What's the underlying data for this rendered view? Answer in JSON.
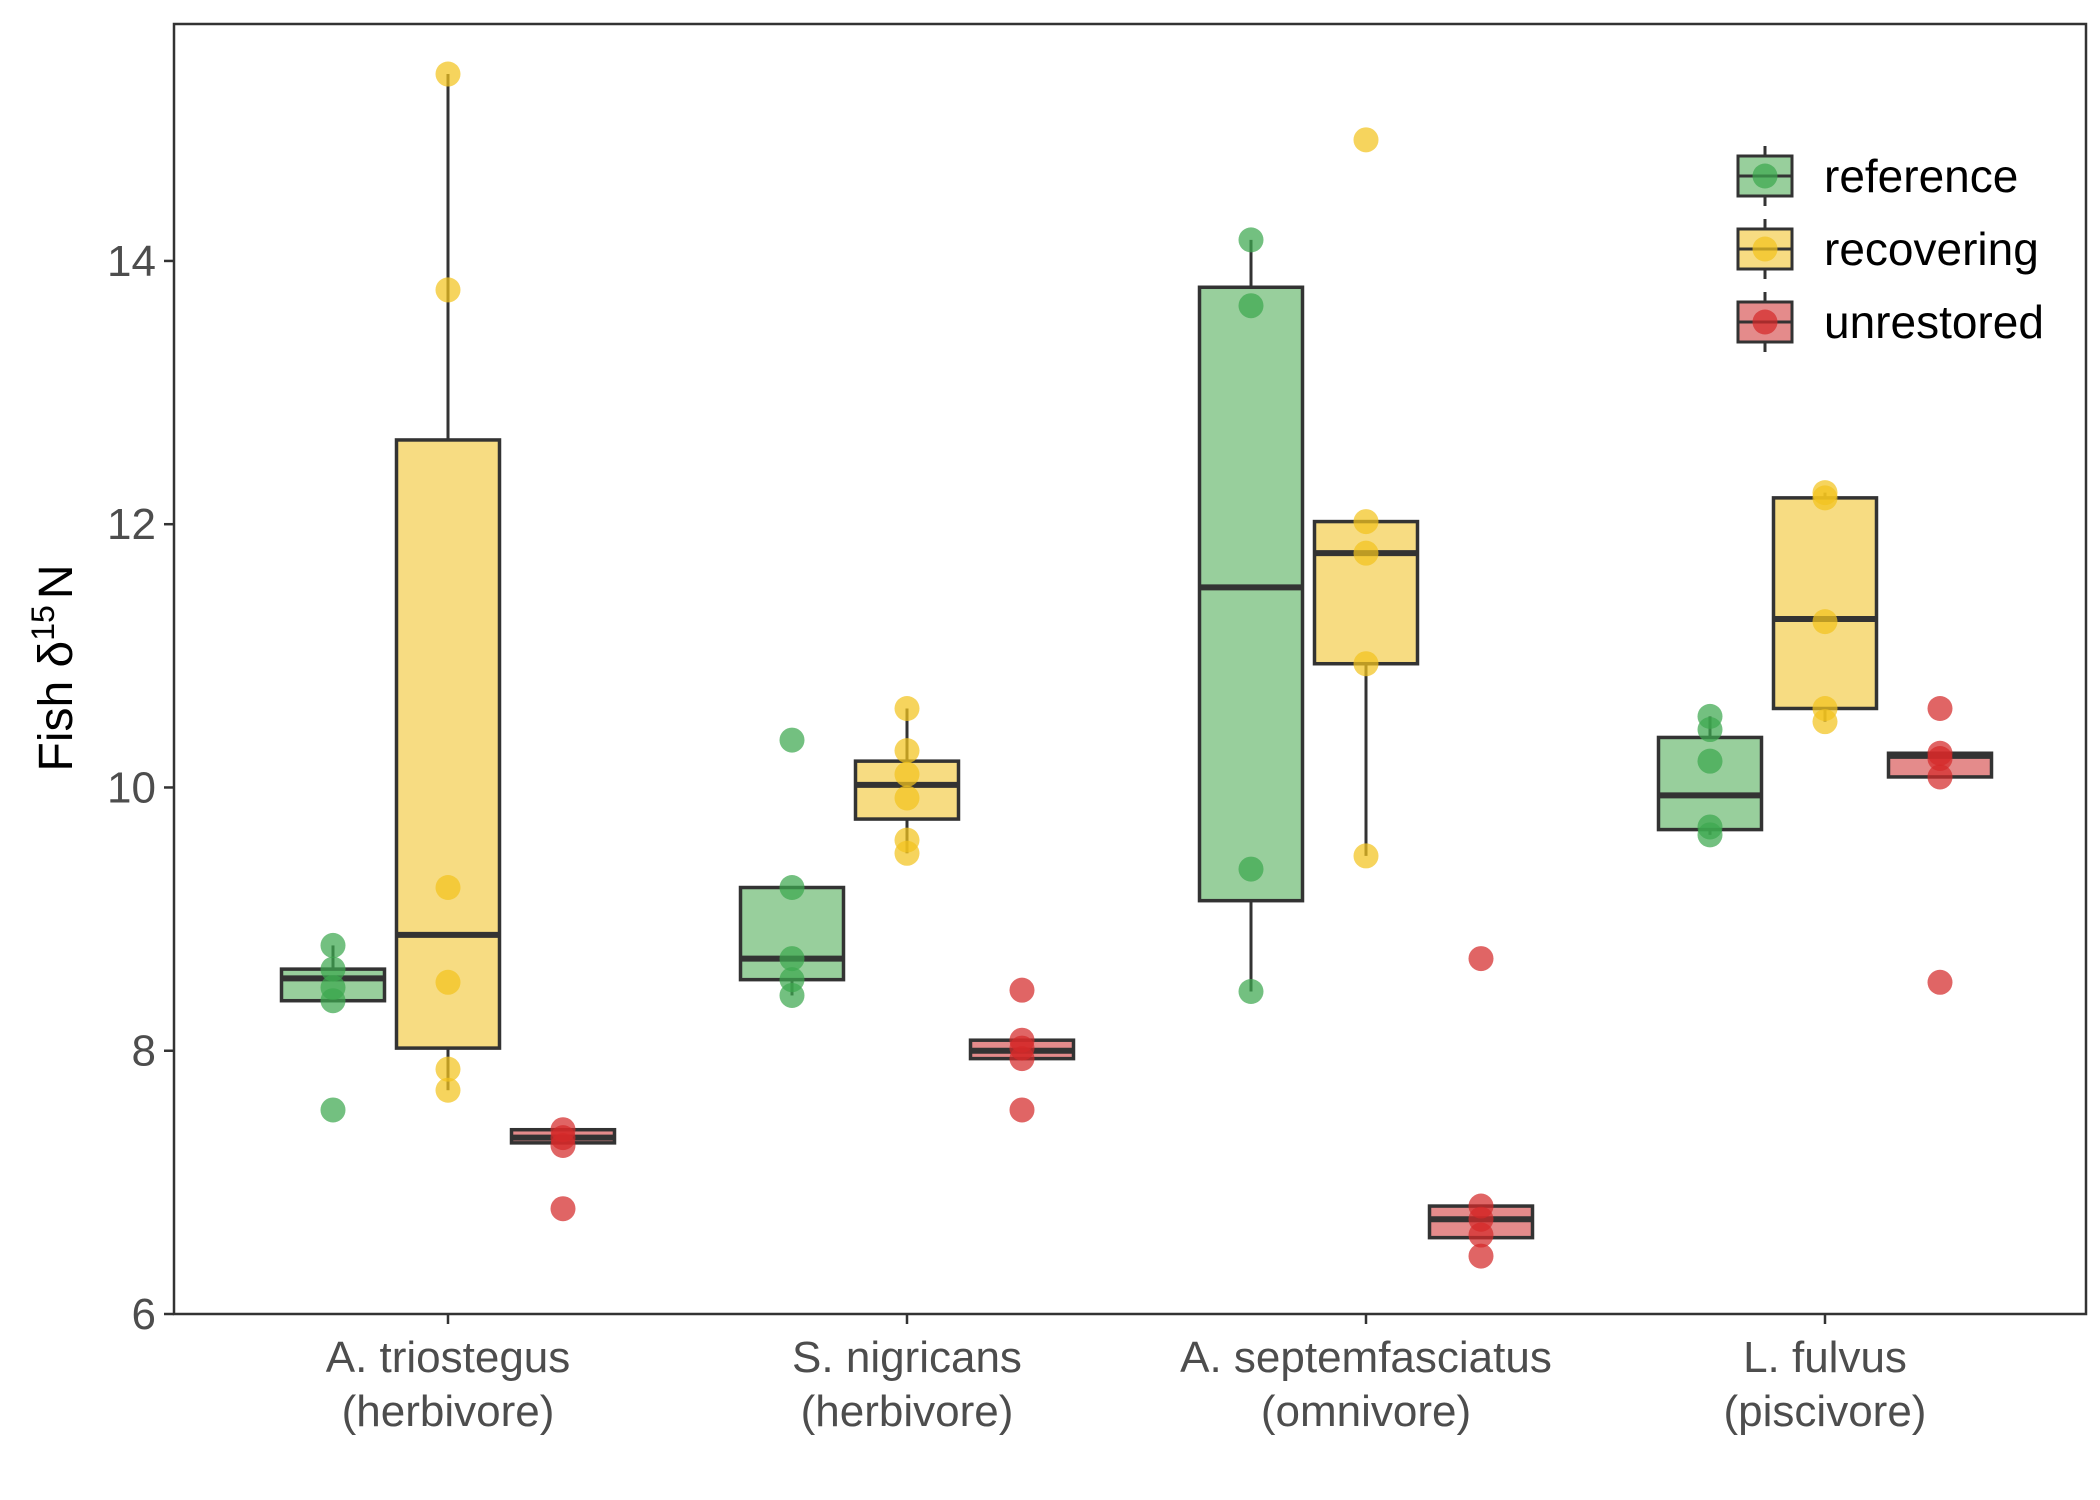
{
  "chart_data": {
    "type": "boxplot",
    "ylabel": {
      "prefix": "Fish ",
      "symbol": "δ",
      "superscript": "15",
      "suffix": "N"
    },
    "ylim": [
      6,
      15.8
    ],
    "yticks": [
      6,
      8,
      10,
      12,
      14
    ],
    "grid": false,
    "legend_position": "top-right",
    "categories": [
      {
        "line1": "A. triostegus",
        "line2": "(herbivore)"
      },
      {
        "line1": "S. nigricans",
        "line2": "(herbivore)"
      },
      {
        "line1": "A. septemfasciatus",
        "line2": "(omnivore)"
      },
      {
        "line1": "L. fulvus",
        "line2": "(piscivore)"
      }
    ],
    "series": [
      {
        "name": "reference",
        "fill": "#98cf9c",
        "point_color": "#3da84f",
        "boxes": [
          {
            "whisker_low": 8.38,
            "q1": 8.38,
            "median": 8.55,
            "q3": 8.62,
            "whisker_high": 8.8,
            "points": [
              7.55,
              8.38,
              8.48,
              8.62,
              8.8
            ]
          },
          {
            "whisker_low": 8.42,
            "q1": 8.54,
            "median": 8.7,
            "q3": 9.24,
            "whisker_high": 9.24,
            "points": [
              8.42,
              8.54,
              8.7,
              9.24,
              10.36
            ]
          },
          {
            "whisker_low": 8.45,
            "q1": 9.14,
            "median": 11.52,
            "q3": 13.8,
            "whisker_high": 14.16,
            "points": [
              8.45,
              9.38,
              13.66,
              14.16
            ]
          },
          {
            "whisker_low": 9.64,
            "q1": 9.68,
            "median": 9.94,
            "q3": 10.38,
            "whisker_high": 10.54,
            "points": [
              9.64,
              9.7,
              10.2,
              10.44,
              10.54
            ]
          }
        ]
      },
      {
        "name": "recovering",
        "fill": "#f7dc82",
        "point_color": "#f2c31f",
        "boxes": [
          {
            "whisker_low": 7.7,
            "q1": 8.02,
            "median": 8.88,
            "q3": 12.64,
            "whisker_high": 15.42,
            "points": [
              7.7,
              7.86,
              8.52,
              9.24,
              13.78,
              15.42
            ]
          },
          {
            "whisker_low": 9.5,
            "q1": 9.76,
            "median": 10.02,
            "q3": 10.2,
            "whisker_high": 10.6,
            "points": [
              9.5,
              9.6,
              9.92,
              10.1,
              10.28,
              10.6
            ]
          },
          {
            "whisker_low": 9.48,
            "q1": 10.94,
            "median": 11.78,
            "q3": 12.02,
            "whisker_high": 12.02,
            "points": [
              9.48,
              10.94,
              11.78,
              12.02,
              14.92
            ]
          },
          {
            "whisker_low": 10.5,
            "q1": 10.6,
            "median": 11.28,
            "q3": 12.2,
            "whisker_high": 12.24,
            "points": [
              10.5,
              10.6,
              11.26,
              12.2,
              12.24
            ]
          }
        ]
      },
      {
        "name": "unrestored",
        "fill": "#e48b8b",
        "point_color": "#d42a2a",
        "boxes": [
          {
            "whisker_low": 7.3,
            "q1": 7.3,
            "median": 7.34,
            "q3": 7.4,
            "whisker_high": 7.4,
            "points": [
              6.8,
              7.28,
              7.34,
              7.4
            ]
          },
          {
            "whisker_low": 7.94,
            "q1": 7.94,
            "median": 8.0,
            "q3": 8.08,
            "whisker_high": 8.08,
            "points": [
              7.55,
              7.94,
              8.02,
              8.08,
              8.46
            ]
          },
          {
            "whisker_low": 6.58,
            "q1": 6.58,
            "median": 6.72,
            "q3": 6.82,
            "whisker_high": 6.82,
            "points": [
              6.44,
              6.6,
              6.72,
              6.82,
              8.7
            ]
          },
          {
            "whisker_low": 10.08,
            "q1": 10.08,
            "median": 10.24,
            "q3": 10.26,
            "whisker_high": 10.26,
            "points": [
              8.52,
              10.08,
              10.22,
              10.26,
              10.6
            ]
          }
        ]
      }
    ]
  }
}
